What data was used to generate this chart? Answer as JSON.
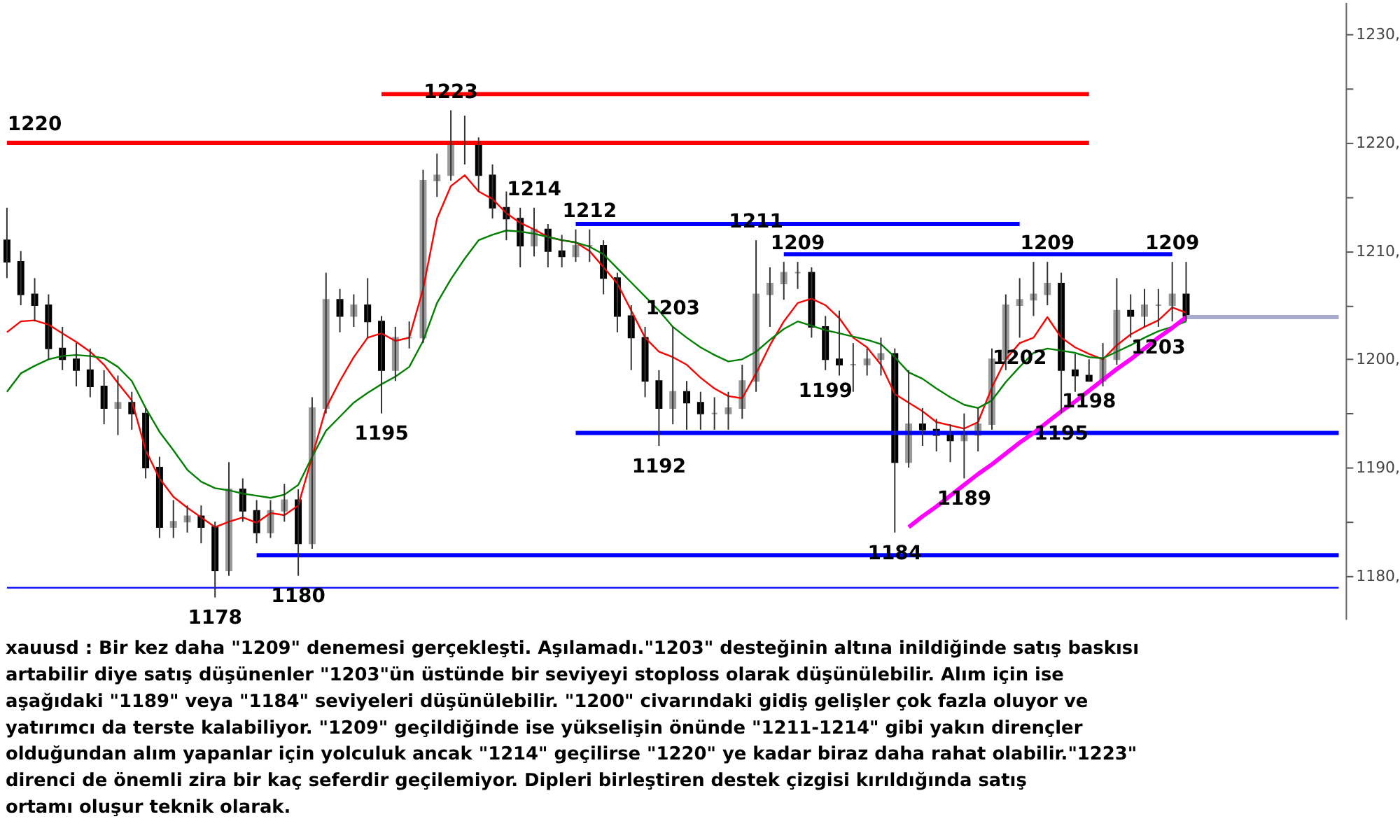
{
  "chart_data": {
    "type": "candlestick",
    "categories": [
      null,
      null,
      null,
      null,
      null,
      null,
      null,
      null,
      null,
      null,
      null,
      null,
      null,
      null,
      null,
      null,
      null,
      null,
      null,
      null,
      null,
      null,
      null,
      null,
      null,
      null,
      null,
      null,
      null,
      null,
      null,
      null,
      null,
      null,
      null,
      null,
      null,
      null,
      null,
      null,
      null,
      null,
      null,
      null,
      null,
      null,
      null,
      null,
      null,
      null,
      null,
      null,
      null,
      null,
      null,
      null,
      null,
      null,
      null,
      null,
      null,
      null,
      null,
      null,
      null,
      null,
      null,
      null,
      null,
      null,
      null,
      null,
      null,
      null,
      null,
      null,
      null,
      null,
      null,
      null,
      null,
      null,
      null,
      null,
      null,
      null,
      null,
      null,
      null,
      null,
      null,
      null,
      null,
      null,
      null,
      null,
      null
    ],
    "ohlc": [
      [
        1211,
        1214,
        1207.5,
        1209
      ],
      [
        1209,
        1210,
        1205,
        1206
      ],
      [
        1206,
        1207.5,
        1203.5,
        1205
      ],
      [
        1205,
        1206,
        1200,
        1201
      ],
      [
        1201,
        1203,
        1199,
        1200
      ],
      [
        1200,
        1201.5,
        1197.5,
        1199
      ],
      [
        1199,
        1201,
        1196.5,
        1197.5
      ],
      [
        1197.5,
        1199,
        1194,
        1195.5
      ],
      [
        1195.5,
        1198.5,
        1193,
        1196
      ],
      [
        1196,
        1197,
        1193.5,
        1195
      ],
      [
        1195,
        1195.5,
        1189,
        1190
      ],
      [
        1190,
        1191,
        1183.5,
        1184.5
      ],
      [
        1184.5,
        1187,
        1183.5,
        1185
      ],
      [
        1185,
        1186.5,
        1184,
        1185.5
      ],
      [
        1185.5,
        1186.5,
        1183,
        1184.5
      ],
      [
        1184.5,
        1185,
        1178,
        1180.5
      ],
      [
        1180.5,
        1190.5,
        1180,
        1188
      ],
      [
        1188,
        1189,
        1185,
        1186
      ],
      [
        1186,
        1187,
        1183,
        1184
      ],
      [
        1184,
        1187,
        1183.5,
        1186
      ],
      [
        1186,
        1188.5,
        1185,
        1187
      ],
      [
        1187,
        1188,
        1180,
        1183
      ],
      [
        1183,
        1196.5,
        1182.5,
        1195.5
      ],
      [
        1195.5,
        1208,
        1195,
        1205.5
      ],
      [
        1205.5,
        1206.5,
        1202.5,
        1204
      ],
      [
        1204,
        1206,
        1203,
        1205
      ],
      [
        1205,
        1207.5,
        1202,
        1203.5
      ],
      [
        1203.5,
        1204,
        1195,
        1199
      ],
      [
        1199,
        1203,
        1198,
        1202
      ],
      [
        1202,
        1203.5,
        1201,
        1202
      ],
      [
        1202,
        1217.5,
        1201.5,
        1216.5
      ],
      [
        1216.5,
        1219,
        1215,
        1217
      ],
      [
        1217,
        1223,
        1216.5,
        1220
      ],
      [
        1220,
        1222.5,
        1218,
        1220
      ],
      [
        1220,
        1220.5,
        1215.5,
        1217
      ],
      [
        1217,
        1218,
        1213,
        1214
      ],
      [
        1214,
        1215.5,
        1211,
        1213
      ],
      [
        1213,
        1214,
        1208.5,
        1210.5
      ],
      [
        1210.5,
        1214,
        1209.5,
        1212
      ],
      [
        1212,
        1212.5,
        1208.5,
        1210
      ],
      [
        1210,
        1211.5,
        1208.5,
        1209.5
      ],
      [
        1209.5,
        1212,
        1209,
        1210.5
      ],
      [
        1210.5,
        1212,
        1209,
        1210.5
      ],
      [
        1210.5,
        1211,
        1206,
        1207.5
      ],
      [
        1207.5,
        1208,
        1202.5,
        1204
      ],
      [
        1204,
        1205,
        1199,
        1202
      ],
      [
        1202,
        1203,
        1196.5,
        1198
      ],
      [
        1198,
        1199,
        1192,
        1195.5
      ],
      [
        1195.5,
        1203,
        1194,
        1197
      ],
      [
        1197,
        1198,
        1193.5,
        1196
      ],
      [
        1196,
        1197,
        1193.5,
        1195
      ],
      [
        1195,
        1196.5,
        1193.5,
        1195
      ],
      [
        1195,
        1197,
        1193.5,
        1195.5
      ],
      [
        1195.5,
        1199.5,
        1194.5,
        1198
      ],
      [
        1198,
        1211,
        1197,
        1206
      ],
      [
        1206,
        1208.5,
        1203,
        1207
      ],
      [
        1207,
        1209,
        1205.5,
        1208
      ],
      [
        1208,
        1209,
        1206.5,
        1208
      ],
      [
        1208,
        1208.5,
        1202,
        1203
      ],
      [
        1203,
        1204,
        1199,
        1200
      ],
      [
        1200,
        1204.5,
        1198.5,
        1199.5
      ],
      [
        1199.5,
        1201.5,
        1197,
        1199.5
      ],
      [
        1199.5,
        1201,
        1198.5,
        1200
      ],
      [
        1200,
        1202,
        1198.5,
        1200.5
      ],
      [
        1200.5,
        1201,
        1184,
        1190.5
      ],
      [
        1190.5,
        1199,
        1190,
        1194
      ],
      [
        1194,
        1195.5,
        1192,
        1193.5
      ],
      [
        1193.5,
        1194.5,
        1191.5,
        1193
      ],
      [
        1193,
        1194,
        1190.5,
        1192.5
      ],
      [
        1192.5,
        1195,
        1189,
        1193
      ],
      [
        1193,
        1195.5,
        1191.5,
        1194
      ],
      [
        1194,
        1201,
        1193.5,
        1200
      ],
      [
        1200,
        1206,
        1199,
        1205
      ],
      [
        1205,
        1207.5,
        1202,
        1205.5
      ],
      [
        1205.5,
        1209,
        1204,
        1206
      ],
      [
        1206,
        1209,
        1205,
        1207
      ],
      [
        1207,
        1208,
        1195,
        1199
      ],
      [
        1199,
        1200.5,
        1197,
        1198.5
      ],
      [
        1198.5,
        1200,
        1198,
        1198
      ],
      [
        1198,
        1201.5,
        1197.5,
        1200
      ],
      [
        1200,
        1207.5,
        1199.5,
        1204.5
      ],
      [
        1204.5,
        1206,
        1202,
        1204
      ],
      [
        1204,
        1206.5,
        1203,
        1205
      ],
      [
        1205,
        1206.5,
        1203,
        1205
      ],
      [
        1205,
        1209,
        1203.5,
        1206
      ],
      [
        1206,
        1209,
        1203.5,
        1204
      ],
      null,
      null,
      null,
      null,
      null,
      null,
      null,
      null,
      null,
      null,
      null
    ],
    "value_labels": [
      null,
      null,
      null,
      null,
      null,
      null,
      null,
      null,
      null,
      null,
      null,
      null,
      null,
      null,
      null,
      "1178",
      null,
      null,
      null,
      null,
      null,
      "1180",
      null,
      null,
      null,
      null,
      null,
      "1195",
      null,
      null,
      null,
      null,
      "1223",
      null,
      null,
      null,
      null,
      null,
      "1214",
      null,
      null,
      null,
      "1212",
      null,
      null,
      null,
      null,
      "1192",
      "1203",
      null,
      null,
      null,
      null,
      null,
      "1211",
      null,
      null,
      "1209",
      null,
      "1199",
      null,
      null,
      null,
      null,
      "1184",
      null,
      null,
      null,
      null,
      "1189",
      null,
      null,
      null,
      "1202",
      null,
      "1209",
      "1195",
      null,
      "1198",
      null,
      null,
      null,
      null,
      "1203",
      "1209",
      null,
      null,
      null,
      null,
      null,
      null,
      null,
      null,
      null,
      null,
      null,
      null
    ],
    "ylim": [
      1176,
      1233
    ],
    "yticks": [
      {
        "value": 1180,
        "label": "1180,"
      },
      {
        "value": 1185,
        "label": null
      },
      {
        "value": 1190,
        "label": "1190,"
      },
      {
        "value": 1195,
        "label": null
      },
      {
        "value": 1200,
        "label": "1200,"
      },
      {
        "value": 1205,
        "label": null
      },
      {
        "value": 1210,
        "label": "1210,"
      },
      {
        "value": 1215,
        "label": null
      },
      {
        "value": 1220,
        "label": "1220,"
      },
      {
        "value": 1225,
        "label": null
      },
      {
        "value": 1230,
        "label": "1230,"
      }
    ],
    "tick_labels": "y",
    "series": [
      {
        "type": "line",
        "color": "#ff0000",
        "values": [
          1202.5,
          1203.5,
          1203.6,
          1203.2,
          1202.4,
          1201.6,
          1200.7,
          1199.5,
          1197.8,
          1196.2,
          1191.6,
          1189,
          1187.3,
          1186.3,
          1185.4,
          1184.5,
          1185,
          1185.4,
          1184.9,
          1185.8,
          1185.6,
          1186.5,
          1191,
          1195.5,
          1198,
          1200.2,
          1202,
          1202.4,
          1201.7,
          1202,
          1206.5,
          1213,
          1216,
          1217,
          1215.5,
          1214.8,
          1213.5,
          1212.6,
          1212,
          1211.3,
          1211,
          1210.8,
          1210,
          1208.5,
          1207,
          1204.5,
          1202,
          1200.7,
          1200.2,
          1199.5,
          1198.3,
          1197.3,
          1196.6,
          1196.4,
          1198.7,
          1201.3,
          1203.5,
          1205.2,
          1205.6,
          1205,
          1203.8,
          1202,
          1201.1,
          1199.5,
          1196.8,
          1196,
          1195.2,
          1194.2,
          1193.9,
          1193.6,
          1194.2,
          1197.4,
          1200,
          1201.5,
          1202,
          1203.9,
          1202,
          1201.1,
          1200.5,
          1200,
          1201.3,
          1202.3,
          1203,
          1203.6,
          1204.8,
          1204.3,
          null,
          null,
          null,
          null,
          null,
          null,
          null,
          null,
          null,
          null,
          null
        ]
      },
      {
        "type": "line",
        "color": "#008000",
        "values": [
          1197,
          1198.7,
          1199.4,
          1200,
          1200.3,
          1200.4,
          1200.3,
          1200.1,
          1199.3,
          1198,
          1195.5,
          1193.3,
          1191.6,
          1189.8,
          1188.7,
          1188.1,
          1187.9,
          1187.6,
          1187.4,
          1187.2,
          1187.5,
          1188.4,
          1191,
          1193.4,
          1194.7,
          1196,
          1196.9,
          1197.7,
          1198.4,
          1199.3,
          1201.7,
          1205.2,
          1207.4,
          1209.3,
          1211,
          1211.5,
          1211.9,
          1211.8,
          1211.6,
          1211.3,
          1211,
          1210.8,
          1210.4,
          1209.7,
          1208.4,
          1207.1,
          1205.8,
          1204.5,
          1203,
          1202,
          1201.1,
          1200.4,
          1199.8,
          1200,
          1200.7,
          1201.8,
          1202.8,
          1203.5,
          1203.1,
          1202.7,
          1202.4,
          1202.1,
          1201.8,
          1201.4,
          1200.2,
          1198.8,
          1198.2,
          1197.3,
          1196.5,
          1195.8,
          1195.5,
          1196.2,
          1197.9,
          1199.3,
          1200.6,
          1201,
          1200.8,
          1200.6,
          1200.2,
          1200.1,
          1200.7,
          1201.3,
          1202,
          1202.6,
          1203,
          1203.5,
          null,
          null,
          null,
          null,
          null,
          null,
          null,
          null,
          null,
          null,
          null
        ]
      },
      {
        "type": "line",
        "color": "#ff0000",
        "values": [
          1220,
          1220,
          1220,
          1220,
          1220,
          1220,
          1220,
          1220,
          1220,
          1220,
          1220,
          1220,
          1220,
          1220,
          1220,
          1220,
          1220,
          1220,
          1220,
          1220,
          1220,
          1220,
          1220,
          1220,
          1220,
          1220,
          1220,
          1220,
          1220,
          1220,
          1220,
          1220,
          1220,
          1220,
          1220,
          1220,
          1220,
          1220,
          1220,
          1220,
          1220,
          1220,
          1220,
          1220,
          1220,
          1220,
          1220,
          1220,
          1220,
          1220,
          1220,
          1220,
          1220,
          1220,
          1220,
          1220,
          1220,
          1220,
          1220,
          1220,
          1220,
          1220,
          1220,
          1220,
          1220,
          1220,
          1220,
          1220,
          1220,
          1220,
          1220,
          1220,
          1220,
          1220,
          1220,
          1220,
          1220,
          1220,
          1220,
          null,
          null,
          null,
          null,
          null,
          null,
          null,
          null,
          null,
          null,
          null,
          null,
          null,
          null,
          null,
          null,
          null,
          null
        ],
        "value_labels": [
          null,
          null,
          "1220",
          null,
          null,
          null,
          null,
          null,
          null,
          null,
          null,
          null,
          null,
          null,
          null,
          null,
          null,
          null,
          null,
          null,
          null,
          null,
          null,
          null,
          null,
          null,
          null,
          null,
          null,
          null,
          null,
          null,
          null,
          null,
          null,
          null,
          null,
          null,
          null,
          null,
          null,
          null,
          null,
          null,
          null,
          null,
          null,
          null,
          null,
          null,
          null,
          null,
          null,
          null,
          null,
          null,
          null,
          null,
          null,
          null,
          null,
          null,
          null,
          null,
          null,
          null,
          null,
          null,
          null,
          null,
          null,
          null,
          null,
          null,
          null,
          null,
          null,
          null,
          null,
          null,
          null,
          null,
          null,
          null,
          null,
          null,
          null,
          null,
          null,
          null,
          null,
          null,
          null,
          null,
          null,
          null,
          null
        ]
      },
      {
        "type": "line",
        "color": "#ff0000",
        "values": [
          null,
          null,
          null,
          null,
          null,
          null,
          null,
          null,
          null,
          null,
          null,
          null,
          null,
          null,
          null,
          null,
          null,
          null,
          null,
          null,
          null,
          null,
          null,
          null,
          null,
          null,
          null,
          1224.5,
          1224.5,
          1224.5,
          1224.5,
          1224.5,
          1224.5,
          1224.5,
          1224.5,
          1224.5,
          1224.5,
          1224.5,
          1224.5,
          1224.5,
          1224.5,
          1224.5,
          1224.5,
          1224.5,
          1224.5,
          1224.5,
          1224.5,
          1224.5,
          1224.5,
          1224.5,
          1224.5,
          1224.5,
          1224.5,
          1224.5,
          1224.5,
          1224.5,
          1224.5,
          1224.5,
          1224.5,
          1224.5,
          1224.5,
          1224.5,
          1224.5,
          1224.5,
          1224.5,
          1224.5,
          1224.5,
          1224.5,
          1224.5,
          1224.5,
          1224.5,
          1224.5,
          1224.5,
          1224.5,
          1224.5,
          1224.5,
          1224.5,
          1224.5,
          1224.5,
          null,
          null,
          null,
          null,
          null,
          null,
          null,
          null,
          null,
          null,
          null,
          null,
          null,
          null,
          null,
          null,
          null,
          null
        ]
      },
      {
        "type": "line",
        "color": "#0000ff",
        "values": [
          null,
          null,
          null,
          null,
          null,
          null,
          null,
          null,
          null,
          null,
          null,
          null,
          null,
          null,
          null,
          null,
          null,
          null,
          null,
          null,
          null,
          null,
          null,
          null,
          null,
          null,
          null,
          null,
          null,
          null,
          null,
          null,
          null,
          null,
          null,
          null,
          null,
          null,
          null,
          null,
          null,
          1212.5,
          1212.5,
          1212.5,
          1212.5,
          1212.5,
          1212.5,
          1212.5,
          1212.5,
          1212.5,
          1212.5,
          1212.5,
          1212.5,
          1212.5,
          1212.5,
          1212.5,
          1212.5,
          1212.5,
          1212.5,
          1212.5,
          1212.5,
          1212.5,
          1212.5,
          1212.5,
          1212.5,
          1212.5,
          1212.5,
          1212.5,
          1212.5,
          1212.5,
          1212.5,
          1212.5,
          1212.5,
          1212.5,
          null,
          null,
          null,
          null,
          null,
          null,
          null,
          null,
          null,
          null,
          null,
          null,
          null,
          null,
          null,
          null,
          null,
          null,
          null,
          null,
          null,
          null,
          null
        ]
      },
      {
        "type": "line",
        "color": "#0000ff",
        "values": [
          null,
          null,
          null,
          null,
          null,
          null,
          null,
          null,
          null,
          null,
          null,
          null,
          null,
          null,
          null,
          null,
          null,
          null,
          null,
          null,
          null,
          null,
          null,
          null,
          null,
          null,
          null,
          null,
          null,
          null,
          null,
          null,
          null,
          null,
          null,
          null,
          null,
          null,
          null,
          null,
          null,
          null,
          null,
          null,
          null,
          null,
          null,
          null,
          null,
          null,
          null,
          null,
          null,
          null,
          null,
          null,
          1209.7,
          1209.7,
          1209.7,
          1209.7,
          1209.7,
          1209.7,
          1209.7,
          1209.7,
          1209.7,
          1209.7,
          1209.7,
          1209.7,
          1209.7,
          1209.7,
          1209.7,
          1209.7,
          1209.7,
          1209.7,
          1209.7,
          1209.7,
          1209.7,
          1209.7,
          1209.7,
          1209.7,
          1209.7,
          1209.7,
          1209.7,
          1209.7,
          1209.7,
          null,
          null,
          null,
          null,
          null,
          null,
          null,
          null,
          null,
          null,
          null,
          null
        ]
      },
      {
        "type": "line",
        "color": "#0000ff",
        "values": [
          null,
          null,
          null,
          null,
          null,
          null,
          null,
          null,
          null,
          null,
          null,
          null,
          null,
          null,
          null,
          null,
          null,
          null,
          null,
          null,
          null,
          null,
          null,
          null,
          null,
          null,
          null,
          null,
          null,
          null,
          null,
          null,
          null,
          null,
          null,
          null,
          null,
          null,
          null,
          null,
          null,
          1193.2,
          1193.2,
          1193.2,
          1193.2,
          1193.2,
          1193.2,
          1193.2,
          1193.2,
          1193.2,
          1193.2,
          1193.2,
          1193.2,
          1193.2,
          1193.2,
          1193.2,
          1193.2,
          1193.2,
          1193.2,
          1193.2,
          1193.2,
          1193.2,
          1193.2,
          1193.2,
          1193.2,
          1193.2,
          1193.2,
          1193.2,
          1193.2,
          1193.2,
          1193.2,
          1193.2,
          1193.2,
          1193.2,
          1193.2,
          1193.2,
          1193.2,
          1193.2,
          1193.2,
          1193.2,
          1193.2,
          1193.2,
          1193.2,
          1193.2,
          1193.2,
          1193.2,
          1193.2,
          1193.2,
          1193.2,
          1193.2,
          1193.2,
          1193.2,
          1193.2,
          1193.2,
          1193.2,
          1193.2,
          1193.2
        ]
      },
      {
        "type": "line",
        "color": "#0000ff",
        "values": [
          null,
          null,
          null,
          null,
          null,
          null,
          null,
          null,
          null,
          null,
          null,
          null,
          null,
          null,
          null,
          null,
          null,
          null,
          1181.9,
          1181.9,
          1181.9,
          1181.9,
          1181.9,
          1181.9,
          1181.9,
          1181.9,
          1181.9,
          1181.9,
          1181.9,
          1181.9,
          1181.9,
          1181.9,
          1181.9,
          1181.9,
          1181.9,
          1181.9,
          1181.9,
          1181.9,
          1181.9,
          1181.9,
          1181.9,
          1181.9,
          1181.9,
          1181.9,
          1181.9,
          1181.9,
          1181.9,
          1181.9,
          1181.9,
          1181.9,
          1181.9,
          1181.9,
          1181.9,
          1181.9,
          1181.9,
          1181.9,
          1181.9,
          1181.9,
          1181.9,
          1181.9,
          1181.9,
          1181.9,
          1181.9,
          1181.9,
          1181.9,
          1181.9,
          1181.9,
          1181.9,
          1181.9,
          1181.9,
          1181.9,
          1181.9,
          1181.9,
          1181.9,
          1181.9,
          1181.9,
          1181.9,
          1181.9,
          1181.9,
          1181.9,
          1181.9,
          1181.9,
          1181.9,
          1181.9,
          1181.9,
          1181.9,
          1181.9,
          1181.9,
          1181.9,
          1181.9,
          1181.9,
          1181.9,
          1181.9,
          1181.9,
          1181.9,
          1181.9,
          1181.9
        ]
      },
      {
        "type": "line",
        "color": "#0000ff",
        "values": [
          1178.9,
          1178.9,
          1178.9,
          1178.9,
          1178.9,
          1178.9,
          1178.9,
          1178.9,
          1178.9,
          1178.9,
          1178.9,
          1178.9,
          1178.9,
          1178.9,
          1178.9,
          1178.9,
          1178.9,
          1178.9,
          1178.9,
          1178.9,
          1178.9,
          1178.9,
          1178.9,
          1178.9,
          1178.9,
          1178.9,
          1178.9,
          1178.9,
          1178.9,
          1178.9,
          1178.9,
          1178.9,
          1178.9,
          1178.9,
          1178.9,
          1178.9,
          1178.9,
          1178.9,
          1178.9,
          1178.9,
          1178.9,
          1178.9,
          1178.9,
          1178.9,
          1178.9,
          1178.9,
          1178.9,
          1178.9,
          1178.9,
          1178.9,
          1178.9,
          1178.9,
          1178.9,
          1178.9,
          1178.9,
          1178.9,
          1178.9,
          1178.9,
          1178.9,
          1178.9,
          1178.9,
          1178.9,
          1178.9,
          1178.9,
          1178.9,
          1178.9,
          1178.9,
          1178.9,
          1178.9,
          1178.9,
          1178.9,
          1178.9,
          1178.9,
          1178.9,
          1178.9,
          1178.9,
          1178.9,
          1178.9,
          1178.9,
          1178.9,
          1178.9,
          1178.9,
          1178.9,
          1178.9,
          1178.9,
          1178.9,
          1178.9,
          1178.9,
          1178.9,
          1178.9,
          1178.9,
          1178.9,
          1178.9,
          1178.9,
          1178.9,
          1178.9,
          1178.9
        ]
      },
      {
        "type": "line",
        "color": "#ff00ff",
        "values": [
          null,
          null,
          null,
          null,
          null,
          null,
          null,
          null,
          null,
          null,
          null,
          null,
          null,
          null,
          null,
          null,
          null,
          null,
          null,
          null,
          null,
          null,
          null,
          null,
          null,
          null,
          null,
          null,
          null,
          null,
          null,
          null,
          null,
          null,
          null,
          null,
          null,
          null,
          null,
          null,
          null,
          null,
          null,
          null,
          null,
          null,
          null,
          null,
          null,
          null,
          null,
          null,
          null,
          null,
          null,
          null,
          null,
          null,
          null,
          null,
          null,
          null,
          null,
          null,
          null,
          1184.5,
          1185.5,
          1186.4,
          1187.4,
          1188.4,
          1189.4,
          1190.3,
          1191.3,
          1192.3,
          1193.2,
          1194.2,
          1195.2,
          1196.1,
          1197.1,
          1198.1,
          1199.1,
          1200,
          1201,
          1202,
          1202.9,
          1203.9,
          null,
          null,
          null,
          null,
          null,
          null,
          null,
          null,
          null,
          null,
          null
        ]
      },
      {
        "type": "line",
        "color": "#aaaacc",
        "values": [
          null,
          null,
          null,
          null,
          null,
          null,
          null,
          null,
          null,
          null,
          null,
          null,
          null,
          null,
          null,
          null,
          null,
          null,
          null,
          null,
          null,
          null,
          null,
          null,
          null,
          null,
          null,
          null,
          null,
          null,
          null,
          null,
          null,
          null,
          null,
          null,
          null,
          null,
          null,
          null,
          null,
          null,
          null,
          null,
          null,
          null,
          null,
          null,
          null,
          null,
          null,
          null,
          null,
          null,
          null,
          null,
          null,
          null,
          null,
          null,
          null,
          null,
          null,
          null,
          null,
          null,
          null,
          null,
          null,
          null,
          null,
          null,
          null,
          null,
          null,
          null,
          null,
          null,
          null,
          null,
          null,
          null,
          null,
          null,
          null,
          1203.9,
          1203.9,
          1203.9,
          1203.9,
          1203.9,
          1203.9,
          1203.9,
          1203.9,
          1203.9,
          1203.9,
          1203.9,
          1203.9
        ]
      }
    ],
    "annotations": [
      "xauusd : Bir kez daha \"1209\" denemesi gerçekleşti. Aşılamadı.\"1203\" desteğinin altına inildiğinde satış baskısı artabilir diye satış düşünenler \"1203\"ün üstünde bir seviyeyi stoploss olarak düşünülebilir. Alım için ise aşağıdaki \"1189\" veya \"1184\" seviyeleri düşünülebilir. \"1200\" civarındaki gidiş gelişler çok fazla oluyor ve yatırımcı da terste kalabiliyor. \"1209\" geçildiğinde ise yükselişin önünde \"1211-1214\" gibi yakın dirençler olduğundan alım yapanlar için yolculuk ancak \"1214\" geçilirse \"1220\" ye kadar biraz daha rahat olabilir.\"1223\" direnci de önemli zira bir kaç seferdir geçilemiyor. Dipleri birleştiren destek çizgisi kırıldığında satış ortamı oluşur teknik olarak."
    ]
  }
}
